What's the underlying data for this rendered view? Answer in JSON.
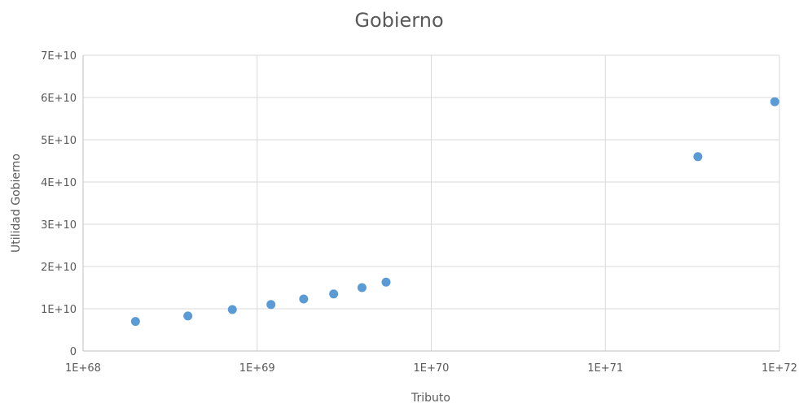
{
  "chart_data": {
    "type": "scatter",
    "title": "Gobierno",
    "xlabel": "Tributo",
    "ylabel": "Utilidad Gobierno",
    "x_scale": "log",
    "x_exponent_range": [
      68,
      72
    ],
    "x_tick_labels": [
      "1E+68",
      "1E+69",
      "1E+70",
      "1E+71",
      "1E+72"
    ],
    "ylim": [
      0,
      70000000000
    ],
    "y_ticks": [
      0,
      10000000000,
      20000000000,
      30000000000,
      40000000000,
      50000000000,
      60000000000,
      70000000000
    ],
    "y_tick_labels": [
      "0",
      "1E+10",
      "2E+10",
      "3E+10",
      "4E+10",
      "5E+10",
      "6E+10",
      "7E+10"
    ],
    "grid": true,
    "legend": "none",
    "marker_color": "#5b9bd5",
    "points": [
      {
        "x": 2e+68,
        "y": 7000000000.0
      },
      {
        "x": 4e+68,
        "y": 8300000000.0
      },
      {
        "x": 7.2e+68,
        "y": 9800000000.0
      },
      {
        "x": 1.2e+69,
        "y": 11000000000.0
      },
      {
        "x": 1.85e+69,
        "y": 12300000000.0
      },
      {
        "x": 2.75e+69,
        "y": 13500000000.0
      },
      {
        "x": 4e+69,
        "y": 15000000000.0
      },
      {
        "x": 5.5e+69,
        "y": 16300000000.0
      },
      {
        "x": 3.4e+71,
        "y": 46000000000.0
      },
      {
        "x": 9.4e+71,
        "y": 59000000000.0
      }
    ]
  }
}
